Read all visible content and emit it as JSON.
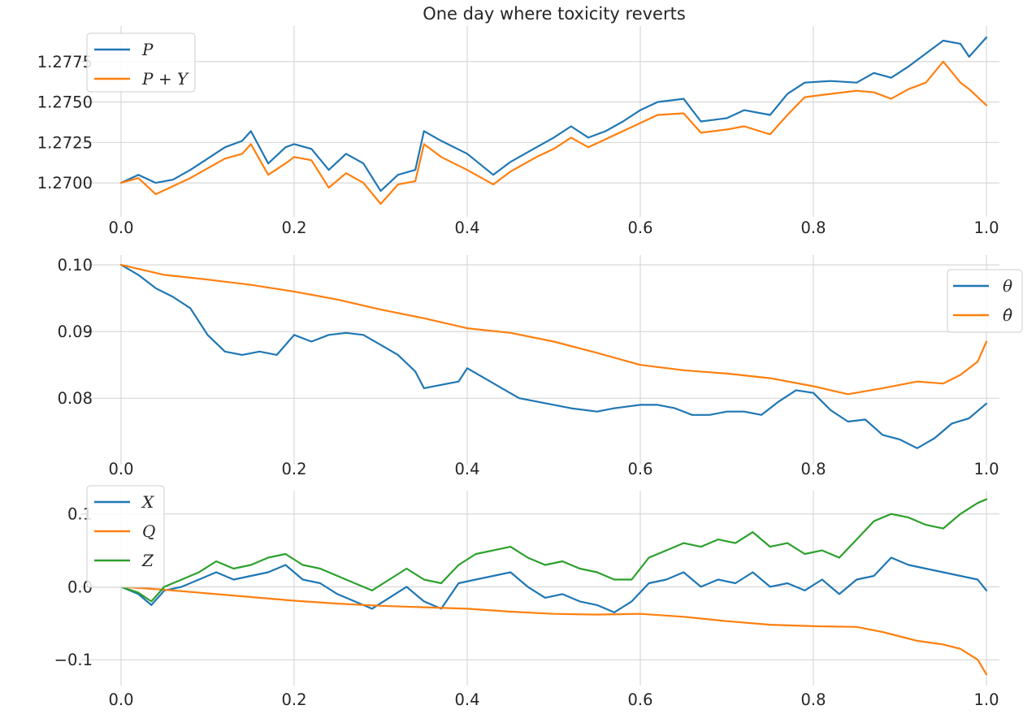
{
  "chart_data": [
    {
      "type": "line",
      "title": "One day where toxicity reverts",
      "xlabel": "",
      "ylabel": "",
      "xlim": [
        0.0,
        1.0
      ],
      "ylim": [
        1.2685,
        1.2793
      ],
      "xticks": [
        0.0,
        0.2,
        0.4,
        0.6,
        0.8,
        1.0
      ],
      "xtick_labels": [
        "0.0",
        "0.2",
        "0.4",
        "0.6",
        "0.8",
        "1.0"
      ],
      "yticks": [
        1.27,
        1.2725,
        1.275,
        1.2775
      ],
      "ytick_labels": [
        "1.2700",
        "1.2725",
        "1.2750",
        "1.2775"
      ],
      "grid": true,
      "legend_position": "top-left",
      "series": [
        {
          "name": "P",
          "color": "#1f77b4",
          "x": [
            0.0,
            0.02,
            0.04,
            0.06,
            0.08,
            0.1,
            0.12,
            0.14,
            0.15,
            0.17,
            0.19,
            0.2,
            0.22,
            0.24,
            0.26,
            0.28,
            0.3,
            0.32,
            0.34,
            0.35,
            0.37,
            0.4,
            0.43,
            0.45,
            0.48,
            0.5,
            0.52,
            0.54,
            0.56,
            0.58,
            0.6,
            0.62,
            0.65,
            0.67,
            0.7,
            0.72,
            0.75,
            0.77,
            0.79,
            0.82,
            0.85,
            0.87,
            0.89,
            0.91,
            0.93,
            0.95,
            0.97,
            0.98,
            1.0
          ],
          "y": [
            1.27,
            1.2705,
            1.27,
            1.2702,
            1.2708,
            1.2715,
            1.2722,
            1.2726,
            1.2732,
            1.2712,
            1.2722,
            1.2724,
            1.2721,
            1.2708,
            1.2718,
            1.2712,
            1.2695,
            1.2705,
            1.2708,
            1.2732,
            1.2726,
            1.2718,
            1.2705,
            1.2713,
            1.2722,
            1.2728,
            1.2735,
            1.2728,
            1.2732,
            1.2738,
            1.2745,
            1.275,
            1.2752,
            1.2738,
            1.274,
            1.2745,
            1.2742,
            1.2755,
            1.2762,
            1.2763,
            1.2762,
            1.2768,
            1.2765,
            1.2772,
            1.278,
            1.2788,
            1.2786,
            1.2778,
            1.279
          ]
        },
        {
          "name": "P + Y",
          "color": "#ff7f0e",
          "x": [
            0.0,
            0.02,
            0.04,
            0.06,
            0.08,
            0.1,
            0.12,
            0.14,
            0.15,
            0.17,
            0.19,
            0.2,
            0.22,
            0.24,
            0.26,
            0.28,
            0.3,
            0.32,
            0.34,
            0.35,
            0.37,
            0.4,
            0.43,
            0.45,
            0.48,
            0.5,
            0.52,
            0.54,
            0.56,
            0.58,
            0.6,
            0.62,
            0.65,
            0.67,
            0.7,
            0.72,
            0.75,
            0.77,
            0.79,
            0.82,
            0.85,
            0.87,
            0.89,
            0.91,
            0.93,
            0.95,
            0.97,
            0.98,
            1.0
          ],
          "y": [
            1.27,
            1.2703,
            1.2693,
            1.2698,
            1.2703,
            1.2709,
            1.2715,
            1.2718,
            1.2724,
            1.2705,
            1.2712,
            1.2716,
            1.2714,
            1.2697,
            1.2706,
            1.27,
            1.2687,
            1.2699,
            1.2701,
            1.2724,
            1.2716,
            1.2708,
            1.2699,
            1.2707,
            1.2716,
            1.2721,
            1.2728,
            1.2722,
            1.2727,
            1.2732,
            1.2737,
            1.2742,
            1.2743,
            1.2731,
            1.2733,
            1.2735,
            1.273,
            1.2742,
            1.2753,
            1.2755,
            1.2757,
            1.2756,
            1.2752,
            1.2758,
            1.2762,
            1.2775,
            1.2762,
            1.2758,
            1.2748
          ]
        }
      ]
    },
    {
      "type": "line",
      "title": "",
      "xlabel": "",
      "ylabel": "",
      "xlim": [
        0.0,
        1.0
      ],
      "ylim": [
        0.0715,
        0.1005
      ],
      "xticks": [
        0.0,
        0.2,
        0.4,
        0.6,
        0.8,
        1.0
      ],
      "xtick_labels": [
        "0.0",
        "0.2",
        "0.4",
        "0.6",
        "0.8",
        "1.0"
      ],
      "yticks": [
        0.08,
        0.09,
        0.1
      ],
      "ytick_labels": [
        "0.08",
        "0.09",
        "0.10"
      ],
      "grid": true,
      "legend_position": "top-right",
      "series": [
        {
          "name": "θ",
          "color": "#1f77b4",
          "x": [
            0.0,
            0.02,
            0.04,
            0.06,
            0.08,
            0.1,
            0.12,
            0.14,
            0.16,
            0.18,
            0.2,
            0.22,
            0.24,
            0.26,
            0.28,
            0.3,
            0.32,
            0.34,
            0.35,
            0.37,
            0.39,
            0.4,
            0.42,
            0.44,
            0.46,
            0.48,
            0.5,
            0.52,
            0.55,
            0.57,
            0.6,
            0.62,
            0.64,
            0.66,
            0.68,
            0.7,
            0.72,
            0.74,
            0.76,
            0.78,
            0.8,
            0.82,
            0.84,
            0.86,
            0.88,
            0.9,
            0.92,
            0.94,
            0.96,
            0.98,
            1.0
          ],
          "y": [
            0.1,
            0.0985,
            0.0965,
            0.0952,
            0.0935,
            0.0895,
            0.087,
            0.0865,
            0.087,
            0.0865,
            0.0895,
            0.0885,
            0.0895,
            0.0898,
            0.0895,
            0.088,
            0.0865,
            0.084,
            0.0815,
            0.082,
            0.0825,
            0.0845,
            0.083,
            0.0815,
            0.08,
            0.0795,
            0.079,
            0.0785,
            0.078,
            0.0785,
            0.079,
            0.079,
            0.0785,
            0.0775,
            0.0775,
            0.078,
            0.078,
            0.0775,
            0.0795,
            0.0812,
            0.0808,
            0.0782,
            0.0765,
            0.0768,
            0.0745,
            0.0738,
            0.0725,
            0.074,
            0.0762,
            0.077,
            0.0792
          ]
        },
        {
          "name": "θ̂",
          "color": "#ff7f0e",
          "x": [
            0.0,
            0.05,
            0.1,
            0.15,
            0.2,
            0.25,
            0.3,
            0.35,
            0.4,
            0.45,
            0.5,
            0.55,
            0.6,
            0.65,
            0.7,
            0.75,
            0.8,
            0.84,
            0.88,
            0.92,
            0.95,
            0.97,
            0.99,
            1.0
          ],
          "y": [
            0.1,
            0.0985,
            0.0978,
            0.097,
            0.096,
            0.0948,
            0.0933,
            0.092,
            0.0905,
            0.0898,
            0.0885,
            0.0868,
            0.085,
            0.0842,
            0.0837,
            0.083,
            0.0818,
            0.0806,
            0.0815,
            0.0825,
            0.0822,
            0.0835,
            0.0855,
            0.0885
          ]
        }
      ]
    },
    {
      "type": "line",
      "title": "",
      "xlabel": "",
      "ylabel": "",
      "xlim": [
        0.0,
        1.0
      ],
      "ylim": [
        -0.122,
        0.123
      ],
      "xticks": [
        0.0,
        0.2,
        0.4,
        0.6,
        0.8,
        1.0
      ],
      "xtick_labels": [
        "0.0",
        "0.2",
        "0.4",
        "0.6",
        "0.8",
        "1.0"
      ],
      "yticks": [
        -0.1,
        0.0,
        0.1
      ],
      "ytick_labels": [
        "−0.1",
        "0.0",
        "0.1"
      ],
      "grid": true,
      "legend_position": "top-left",
      "series": [
        {
          "name": "X",
          "color": "#1f77b4",
          "x": [
            0.0,
            0.02,
            0.035,
            0.05,
            0.07,
            0.09,
            0.11,
            0.13,
            0.15,
            0.17,
            0.19,
            0.21,
            0.23,
            0.25,
            0.27,
            0.29,
            0.31,
            0.33,
            0.35,
            0.37,
            0.39,
            0.41,
            0.43,
            0.45,
            0.47,
            0.49,
            0.51,
            0.53,
            0.55,
            0.57,
            0.59,
            0.61,
            0.63,
            0.65,
            0.67,
            0.69,
            0.71,
            0.73,
            0.75,
            0.77,
            0.79,
            0.81,
            0.83,
            0.85,
            0.87,
            0.89,
            0.91,
            0.93,
            0.95,
            0.97,
            0.99,
            1.0
          ],
          "y": [
            0.0,
            -0.01,
            -0.025,
            -0.005,
            0.0,
            0.01,
            0.02,
            0.01,
            0.015,
            0.02,
            0.03,
            0.01,
            0.005,
            -0.01,
            -0.02,
            -0.03,
            -0.015,
            0.0,
            -0.02,
            -0.03,
            0.005,
            0.01,
            0.015,
            0.02,
            0.0,
            -0.015,
            -0.01,
            -0.02,
            -0.025,
            -0.035,
            -0.02,
            0.005,
            0.01,
            0.02,
            0.0,
            0.01,
            0.005,
            0.02,
            0.0,
            0.005,
            -0.005,
            0.01,
            -0.01,
            0.01,
            0.015,
            0.04,
            0.03,
            0.025,
            0.02,
            0.015,
            0.01,
            -0.005
          ]
        },
        {
          "name": "Q",
          "color": "#ff7f0e",
          "x": [
            0.0,
            0.05,
            0.1,
            0.15,
            0.2,
            0.25,
            0.3,
            0.35,
            0.4,
            0.45,
            0.5,
            0.55,
            0.6,
            0.65,
            0.7,
            0.75,
            0.8,
            0.85,
            0.88,
            0.9,
            0.92,
            0.95,
            0.97,
            0.99,
            1.0
          ],
          "y": [
            0.0,
            -0.004,
            -0.009,
            -0.014,
            -0.019,
            -0.023,
            -0.026,
            -0.028,
            -0.03,
            -0.034,
            -0.037,
            -0.038,
            -0.037,
            -0.041,
            -0.047,
            -0.052,
            -0.054,
            -0.055,
            -0.062,
            -0.068,
            -0.074,
            -0.079,
            -0.085,
            -0.1,
            -0.12
          ]
        },
        {
          "name": "Z",
          "color": "#2ca02c",
          "x": [
            0.0,
            0.02,
            0.035,
            0.05,
            0.07,
            0.09,
            0.11,
            0.13,
            0.15,
            0.17,
            0.19,
            0.21,
            0.23,
            0.25,
            0.27,
            0.29,
            0.31,
            0.33,
            0.35,
            0.37,
            0.39,
            0.41,
            0.43,
            0.45,
            0.47,
            0.49,
            0.51,
            0.53,
            0.55,
            0.57,
            0.59,
            0.61,
            0.63,
            0.65,
            0.67,
            0.69,
            0.71,
            0.73,
            0.75,
            0.77,
            0.79,
            0.81,
            0.83,
            0.85,
            0.87,
            0.89,
            0.91,
            0.93,
            0.95,
            0.97,
            0.99,
            1.0
          ],
          "y": [
            0.0,
            -0.008,
            -0.02,
            0.0,
            0.01,
            0.02,
            0.035,
            0.025,
            0.03,
            0.04,
            0.045,
            0.03,
            0.025,
            0.015,
            0.005,
            -0.005,
            0.01,
            0.025,
            0.01,
            0.005,
            0.03,
            0.045,
            0.05,
            0.055,
            0.04,
            0.03,
            0.035,
            0.025,
            0.02,
            0.01,
            0.01,
            0.04,
            0.05,
            0.06,
            0.055,
            0.065,
            0.06,
            0.075,
            0.055,
            0.06,
            0.045,
            0.05,
            0.04,
            0.065,
            0.09,
            0.1,
            0.095,
            0.085,
            0.08,
            0.1,
            0.115,
            0.12
          ]
        }
      ]
    }
  ]
}
